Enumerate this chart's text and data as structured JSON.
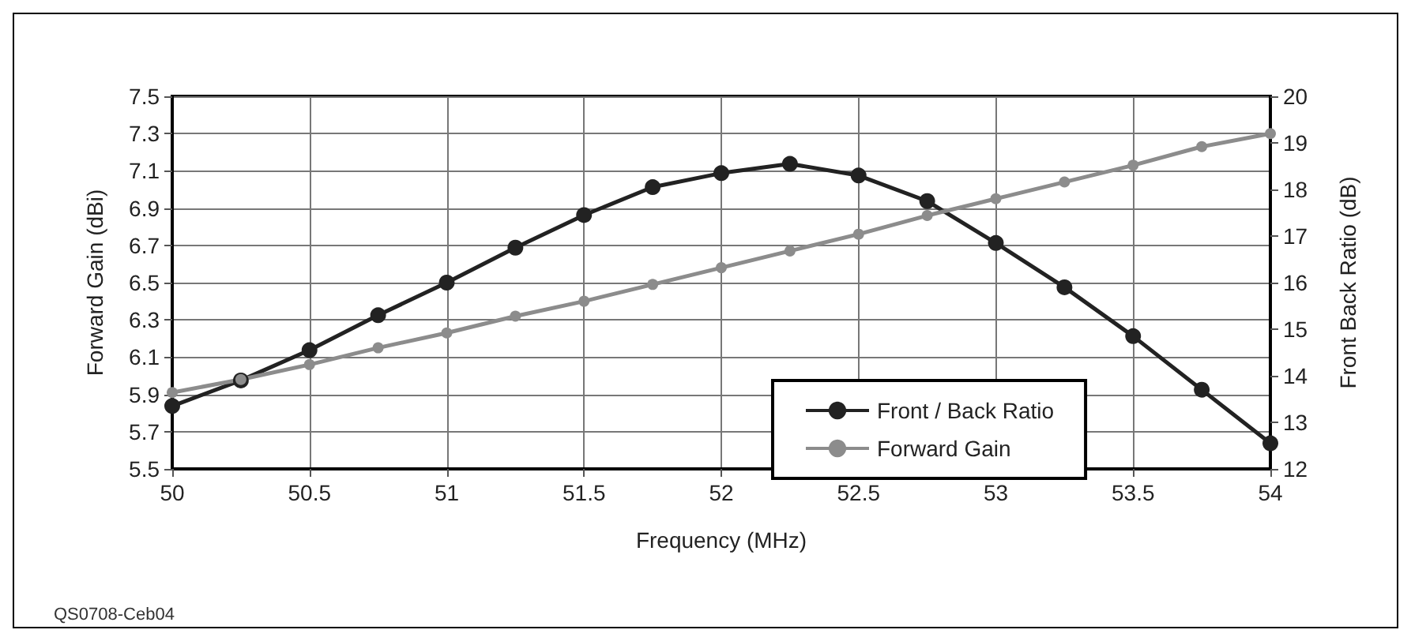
{
  "chart_data": {
    "type": "line",
    "xlabel": "Frequency (MHz)",
    "ylabel": "Forward Gain (dBi)",
    "y2label": "Front Back Ratio (dB)",
    "x": [
      50,
      50.25,
      50.5,
      50.75,
      51,
      51.25,
      51.5,
      51.75,
      52,
      52.25,
      52.5,
      52.75,
      53,
      53.25,
      53.5,
      53.75,
      54
    ],
    "series": [
      {
        "name": "Front / Back Ratio",
        "color": "#222222",
        "axis": "y2",
        "values": [
          13.35,
          13.9,
          14.55,
          15.3,
          16.0,
          16.75,
          17.45,
          18.05,
          18.35,
          18.55,
          18.3,
          17.75,
          16.85,
          15.9,
          14.85,
          13.7,
          12.55
        ]
      },
      {
        "name": "Forward Gain",
        "color": "#8c8c8c",
        "values": [
          5.91,
          5.98,
          6.06,
          6.15,
          6.23,
          6.32,
          6.4,
          6.49,
          6.58,
          6.67,
          6.76,
          6.86,
          6.95,
          7.04,
          7.13,
          7.23,
          7.3
        ]
      }
    ],
    "xlim": [
      50,
      54
    ],
    "xticks": [
      50,
      50.5,
      51,
      51.5,
      52,
      52.5,
      53,
      53.5,
      54
    ],
    "ylim": [
      5.5,
      7.5
    ],
    "yticks": [
      5.5,
      5.7,
      5.9,
      6.1,
      6.3,
      6.5,
      6.7,
      6.9,
      7.1,
      7.3,
      7.5
    ],
    "y2lim": [
      12,
      20
    ],
    "y2ticks": [
      12,
      13,
      14,
      15,
      16,
      17,
      18,
      19,
      20
    ],
    "annotations": [
      "QS0708-Ceb04"
    ],
    "grid": true,
    "legend": "bottom",
    "marker": "circle",
    "line_style": "solid"
  }
}
